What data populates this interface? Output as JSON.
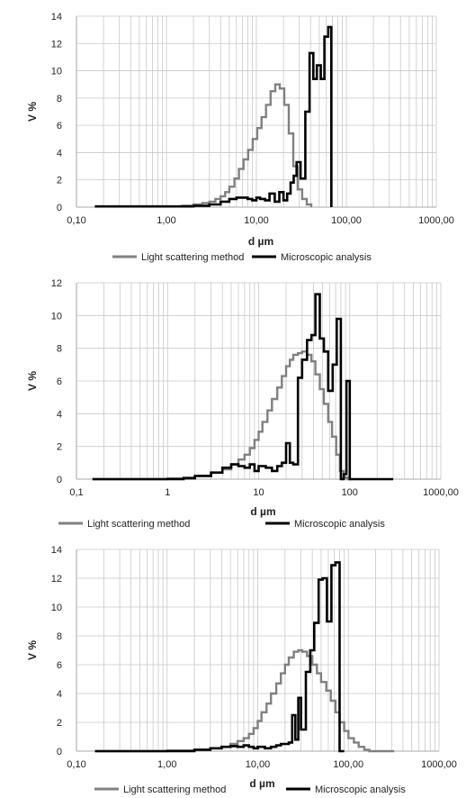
{
  "chart_data": [
    {
      "type": "line",
      "step": true,
      "xscale": "log",
      "xlim": [
        0.1,
        1000
      ],
      "ylim": [
        0,
        14
      ],
      "yticks": [
        0,
        2,
        4,
        6,
        8,
        10,
        12,
        14
      ],
      "xtick_values": [
        0.1,
        1,
        10,
        100,
        1000
      ],
      "xtick_labels": [
        "0,10",
        "1,00",
        "10,00",
        "100,00",
        "1000,00"
      ],
      "xlabel": "d µm",
      "ylabel": "V %",
      "grid": true,
      "legend_position": "bottom",
      "series": [
        {
          "name": "Light scattering method",
          "color": "#808080",
          "x": [
            0.16,
            1.0,
            1.5,
            2.0,
            2.5,
            3.0,
            3.5,
            4.0,
            4.5,
            5.0,
            5.7,
            6.4,
            7.2,
            8.1,
            9.1,
            10.2,
            11.4,
            12.8,
            14.4,
            16.2,
            18.2,
            20.4,
            22.9,
            25.7,
            28.8,
            32.3,
            36.3,
            40.7
          ],
          "values": [
            0.05,
            0.05,
            0.1,
            0.2,
            0.3,
            0.4,
            0.6,
            0.8,
            1.1,
            1.5,
            2.1,
            2.8,
            3.5,
            4.2,
            5.0,
            5.8,
            6.6,
            7.5,
            8.5,
            9.0,
            8.7,
            7.5,
            5.4,
            3.0,
            1.3,
            0.6,
            0.2,
            0.0
          ]
        },
        {
          "name": "Microscopic analysis",
          "color": "#000000",
          "x": [
            0.16,
            2.0,
            3.0,
            4.0,
            5.0,
            6.0,
            7.0,
            8.0,
            9.0,
            10.0,
            11.0,
            12.5,
            14.0,
            16.0,
            18.0,
            20.0,
            22.0,
            24.0,
            26.0,
            28.0,
            31.0,
            35.0,
            39.0,
            43.0,
            47.0,
            52.0,
            57.0,
            63.0,
            68.0
          ],
          "values": [
            0.05,
            0.1,
            0.2,
            0.4,
            0.6,
            0.7,
            0.7,
            0.6,
            0.5,
            0.7,
            0.6,
            0.5,
            1.0,
            0.4,
            1.1,
            0.5,
            1.0,
            1.8,
            2.3,
            3.3,
            2.1,
            7.0,
            11.3,
            9.4,
            10.4,
            9.4,
            12.5,
            13.2,
            0.0
          ]
        }
      ]
    },
    {
      "type": "line",
      "step": true,
      "xscale": "log",
      "xlim": [
        0.1,
        1000
      ],
      "ylim": [
        0,
        12
      ],
      "yticks": [
        0,
        2,
        4,
        6,
        8,
        10,
        12
      ],
      "xtick_values": [
        0.1,
        1,
        10,
        100,
        1000
      ],
      "xtick_labels": [
        "0,1",
        "1",
        "10",
        "100",
        "1000,00"
      ],
      "xlabel": "d  µm",
      "ylabel": "V %",
      "grid": true,
      "legend_position": "bottom",
      "series": [
        {
          "name": "Light scattering method",
          "color": "#808080",
          "x": [
            0.15,
            1.0,
            1.5,
            2.0,
            3.0,
            4.0,
            5.0,
            6.0,
            7.0,
            8.0,
            9.0,
            10.0,
            11.0,
            12.5,
            14.0,
            16.0,
            18.0,
            20.0,
            22.0,
            24.0,
            27.0,
            30.0,
            34.0,
            38.0,
            42.0,
            47.0,
            52.0,
            58.0,
            64.0,
            71.0,
            78.0,
            86.0,
            95.0,
            105.0
          ],
          "values": [
            0.0,
            0.05,
            0.1,
            0.2,
            0.4,
            0.6,
            0.9,
            1.2,
            1.5,
            1.9,
            2.4,
            2.9,
            3.5,
            4.2,
            4.9,
            5.6,
            6.3,
            6.9,
            7.3,
            7.6,
            7.7,
            7.8,
            7.6,
            7.2,
            6.4,
            5.5,
            4.6,
            3.5,
            2.6,
            1.5,
            0.5,
            0.1,
            0.0,
            0.0
          ]
        },
        {
          "name": "Microscopic analysis",
          "color": "#000000",
          "x": [
            0.15,
            1.5,
            2.0,
            3.0,
            4.0,
            5.0,
            6.0,
            7.0,
            8.0,
            9.0,
            10.0,
            12.0,
            14.0,
            16.0,
            18.0,
            20.0,
            22.0,
            24.0,
            27.0,
            30.0,
            34.0,
            38.0,
            42.0,
            47.0,
            52.0,
            58.0,
            65.0,
            72.0,
            80.0,
            86.0,
            92.0,
            100.0,
            110.0,
            300.0
          ],
          "values": [
            0.0,
            0.05,
            0.2,
            0.4,
            0.7,
            0.9,
            0.8,
            0.7,
            0.9,
            0.5,
            0.8,
            0.7,
            0.5,
            0.8,
            1.0,
            2.2,
            1.0,
            0.9,
            6.2,
            7.3,
            8.5,
            8.8,
            11.3,
            8.6,
            7.8,
            5.4,
            7.0,
            9.8,
            0.0,
            0.3,
            6.0,
            0.0,
            0.0,
            0.0
          ]
        }
      ]
    },
    {
      "type": "line",
      "step": true,
      "xscale": "log",
      "xlim": [
        0.1,
        1000
      ],
      "ylim": [
        0,
        14
      ],
      "yticks": [
        0,
        2,
        4,
        6,
        8,
        10,
        12,
        14
      ],
      "xtick_values": [
        0.1,
        1,
        10,
        100,
        1000
      ],
      "xtick_labels": [
        "0,10",
        "1,00",
        "10,00",
        "100,00",
        "1000,00"
      ],
      "xlabel": "d µm",
      "ylabel": "V %",
      "grid": true,
      "legend_position": "bottom",
      "series": [
        {
          "name": "Light scattering method",
          "color": "#808080",
          "x": [
            0.16,
            1.0,
            2.0,
            3.0,
            4.0,
            5.0,
            6.0,
            7.0,
            8.0,
            9.0,
            10.0,
            11.0,
            12.5,
            14.0,
            16.0,
            18.0,
            20.0,
            22.0,
            25.0,
            28.0,
            31.0,
            35.0,
            40.0,
            45.0,
            50.0,
            57.0,
            64.0,
            72.0,
            80.0,
            90.0,
            100.0,
            115.0,
            130.0,
            150.0,
            170.0,
            200.0,
            320.0
          ],
          "values": [
            0.0,
            0.05,
            0.1,
            0.2,
            0.3,
            0.5,
            0.7,
            0.9,
            1.2,
            1.6,
            2.1,
            2.7,
            3.3,
            4.0,
            4.7,
            5.4,
            6.0,
            6.5,
            6.9,
            7.0,
            6.9,
            6.6,
            6.0,
            5.4,
            4.8,
            4.2,
            3.5,
            2.7,
            2.0,
            1.4,
            0.9,
            0.6,
            0.3,
            0.1,
            0.0,
            0.0,
            0.0
          ]
        },
        {
          "name": "Microscopic analysis",
          "color": "#000000",
          "x": [
            0.16,
            2.0,
            3.0,
            4.0,
            5.0,
            6.0,
            7.0,
            8.0,
            9.0,
            10.0,
            12.0,
            14.0,
            16.0,
            18.0,
            20.0,
            22.0,
            24.0,
            26.0,
            28.0,
            30.0,
            34.0,
            38.0,
            42.0,
            47.0,
            52.0,
            58.0,
            65.0,
            72.0,
            80.0,
            90.0
          ],
          "values": [
            0.0,
            0.1,
            0.2,
            0.3,
            0.35,
            0.3,
            0.4,
            0.3,
            0.2,
            0.3,
            0.2,
            0.3,
            0.4,
            0.5,
            0.5,
            0.6,
            2.5,
            0.8,
            3.7,
            1.5,
            5.5,
            7.0,
            8.9,
            11.9,
            12.0,
            9.0,
            12.9,
            13.1,
            0.0,
            0.0
          ]
        }
      ]
    }
  ]
}
